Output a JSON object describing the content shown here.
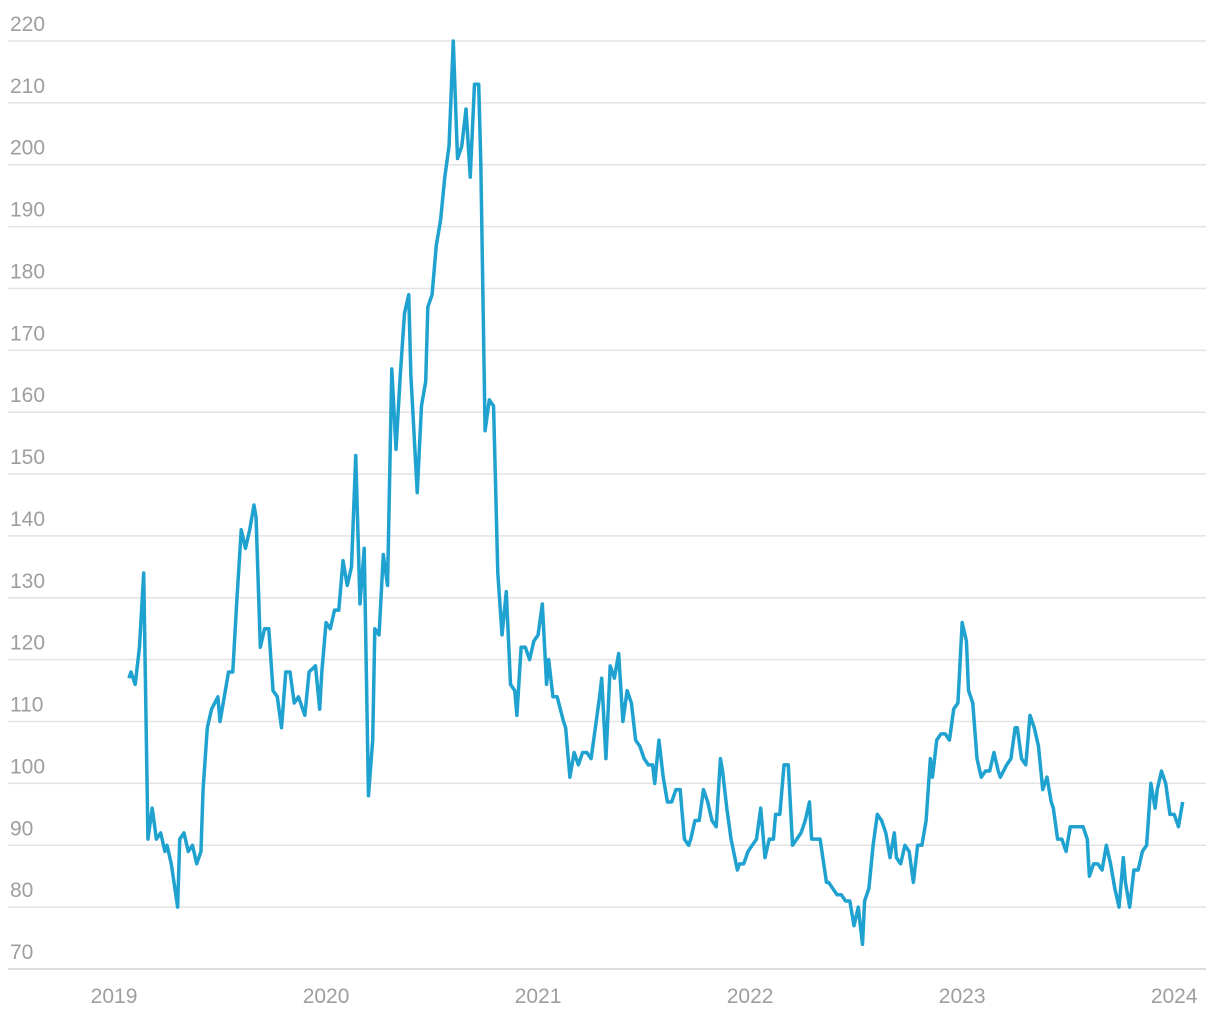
{
  "chart_data": {
    "type": "line",
    "color": "#1fa2cf",
    "grid": true,
    "xlim": [
      2018.5,
      2024.15
    ],
    "xticks": [
      2019,
      2020,
      2021,
      2022,
      2023,
      2024
    ],
    "ylim": [
      70,
      220
    ],
    "yticks": [
      70,
      80,
      90,
      100,
      110,
      120,
      130,
      140,
      150,
      160,
      170,
      180,
      190,
      200,
      210,
      220
    ],
    "x": [
      2019.07,
      2019.08,
      2019.1,
      2019.12,
      2019.14,
      2019.16,
      2019.18,
      2019.2,
      2019.22,
      2019.24,
      2019.25,
      2019.27,
      2019.3,
      2019.31,
      2019.33,
      2019.35,
      2019.37,
      2019.39,
      2019.41,
      2019.42,
      2019.44,
      2019.46,
      2019.49,
      2019.5,
      2019.54,
      2019.56,
      2019.58,
      2019.6,
      2019.62,
      2019.64,
      2019.66,
      2019.67,
      2019.69,
      2019.71,
      2019.73,
      2019.75,
      2019.77,
      2019.79,
      2019.81,
      2019.83,
      2019.85,
      2019.87,
      2019.89,
      2019.9,
      2019.92,
      2019.95,
      2019.97,
      2019.98,
      2020.0,
      2020.02,
      2020.04,
      2020.06,
      2020.08,
      2020.1,
      2020.12,
      2020.14,
      2020.16,
      2020.18,
      2020.2,
      2020.22,
      2020.23,
      2020.25,
      2020.27,
      2020.29,
      2020.31,
      2020.33,
      2020.35,
      2020.37,
      2020.39,
      2020.4,
      2020.43,
      2020.45,
      2020.47,
      2020.48,
      2020.5,
      2020.52,
      2020.54,
      2020.56,
      2020.58,
      2020.6,
      2020.62,
      2020.64,
      2020.66,
      2020.68,
      2020.7,
      2020.72,
      2020.73,
      2020.75,
      2020.77,
      2020.79,
      2020.81,
      2020.83,
      2020.85,
      2020.87,
      2020.89,
      2020.9,
      2020.92,
      2020.94,
      2020.96,
      2020.98,
      2021.0,
      2021.02,
      2021.04,
      2021.05,
      2021.07,
      2021.09,
      2021.12,
      2021.13,
      2021.15,
      2021.17,
      2021.19,
      2021.21,
      2021.23,
      2021.25,
      2021.27,
      2021.29,
      2021.3,
      2021.32,
      2021.34,
      2021.36,
      2021.38,
      2021.4,
      2021.42,
      2021.44,
      2021.46,
      2021.48,
      2021.5,
      2021.52,
      2021.54,
      2021.55,
      2021.57,
      2021.59,
      2021.61,
      2021.63,
      2021.65,
      2021.67,
      2021.69,
      2021.71,
      2021.72,
      2021.74,
      2021.76,
      2021.78,
      2021.8,
      2021.82,
      2021.84,
      2021.86,
      2021.87,
      2021.89,
      2021.91,
      2021.94,
      2021.95,
      2021.97,
      2021.99,
      2022.01,
      2022.03,
      2022.05,
      2022.07,
      2022.09,
      2022.11,
      2022.12,
      2022.14,
      2022.16,
      2022.18,
      2022.2,
      2022.22,
      2022.24,
      2022.26,
      2022.28,
      2022.29,
      2022.31,
      2022.33,
      2022.36,
      2022.37,
      2022.39,
      2022.41,
      2022.43,
      2022.45,
      2022.47,
      2022.49,
      2022.51,
      2022.53,
      2022.54,
      2022.56,
      2022.58,
      2022.6,
      2022.62,
      2022.64,
      2022.66,
      2022.68,
      2022.69,
      2022.71,
      2022.73,
      2022.75,
      2022.77,
      2022.79,
      2022.81,
      2022.83,
      2022.85,
      2022.86,
      2022.88,
      2022.9,
      2022.92,
      2022.94,
      2022.96,
      2022.98,
      2023.0,
      2023.02,
      2023.03,
      2023.05,
      2023.07,
      2023.09,
      2023.11,
      2023.13,
      2023.15,
      2023.17,
      2023.18,
      2023.21,
      2023.23,
      2023.25,
      2023.26,
      2023.28,
      2023.3,
      2023.32,
      2023.34,
      2023.36,
      2023.38,
      2023.4,
      2023.42,
      2023.43,
      2023.45,
      2023.47,
      2023.49,
      2023.51,
      2023.53,
      2023.55,
      2023.57,
      2023.59,
      2023.6,
      2023.62,
      2023.64,
      2023.66,
      2023.68,
      2023.7,
      2023.72,
      2023.74,
      2023.76,
      2023.77,
      2023.79,
      2023.81,
      2023.83,
      2023.85,
      2023.87,
      2023.89,
      2023.91,
      2023.92,
      2023.94,
      2023.96,
      2023.98,
      2024.0,
      2024.02,
      2024.04
    ],
    "values": [
      117,
      118,
      116,
      122,
      134,
      91,
      96,
      91,
      92,
      89,
      90,
      87,
      80,
      91,
      92,
      89,
      90,
      87,
      89,
      99,
      109,
      112,
      114,
      110,
      118,
      118,
      130,
      141,
      138,
      141,
      145,
      143,
      122,
      125,
      125,
      115,
      114,
      109,
      118,
      118,
      113,
      114,
      112,
      111,
      118,
      119,
      112,
      118,
      126,
      125,
      128,
      128,
      136,
      132,
      135,
      153,
      129,
      138,
      98,
      107,
      125,
      124,
      137,
      132,
      167,
      154,
      166,
      176,
      179,
      166,
      147,
      161,
      165,
      177,
      179,
      187,
      191,
      198,
      203,
      220,
      201,
      203,
      209,
      198,
      213,
      213,
      200,
      157,
      162,
      161,
      134,
      124,
      131,
      116,
      115,
      111,
      122,
      122,
      120,
      123,
      124,
      129,
      116,
      120,
      114,
      114,
      110,
      109,
      101,
      105,
      103,
      105,
      105,
      104,
      109,
      114,
      117,
      104,
      119,
      117,
      121,
      110,
      115,
      113,
      107,
      106,
      104,
      103,
      103,
      100,
      107,
      101,
      97,
      97,
      99,
      99,
      91,
      90,
      91,
      94,
      94,
      99,
      97,
      94,
      93,
      104,
      102,
      96,
      91,
      86,
      87,
      87,
      89,
      90,
      91,
      96,
      88,
      91,
      91,
      95,
      95,
      103,
      103,
      90,
      91,
      92,
      94,
      97,
      91,
      91,
      91,
      84,
      84,
      83,
      82,
      82,
      81,
      81,
      77,
      80,
      74,
      81,
      83,
      90,
      95,
      94,
      92,
      88,
      92,
      88,
      87,
      90,
      89,
      84,
      90,
      90,
      94,
      104,
      101,
      107,
      108,
      108,
      107,
      112,
      113,
      126,
      123,
      115,
      113,
      104,
      101,
      102,
      102,
      105,
      102,
      101,
      103,
      104,
      109,
      109,
      104,
      103,
      111,
      109,
      106,
      99,
      101,
      97,
      96,
      91,
      91,
      89,
      93,
      93,
      93,
      93,
      91,
      85,
      87,
      87,
      86,
      90,
      87,
      83,
      80,
      88,
      84,
      80,
      86,
      86,
      89,
      90,
      100,
      96,
      99,
      102,
      100,
      95,
      95,
      93,
      97
    ]
  }
}
